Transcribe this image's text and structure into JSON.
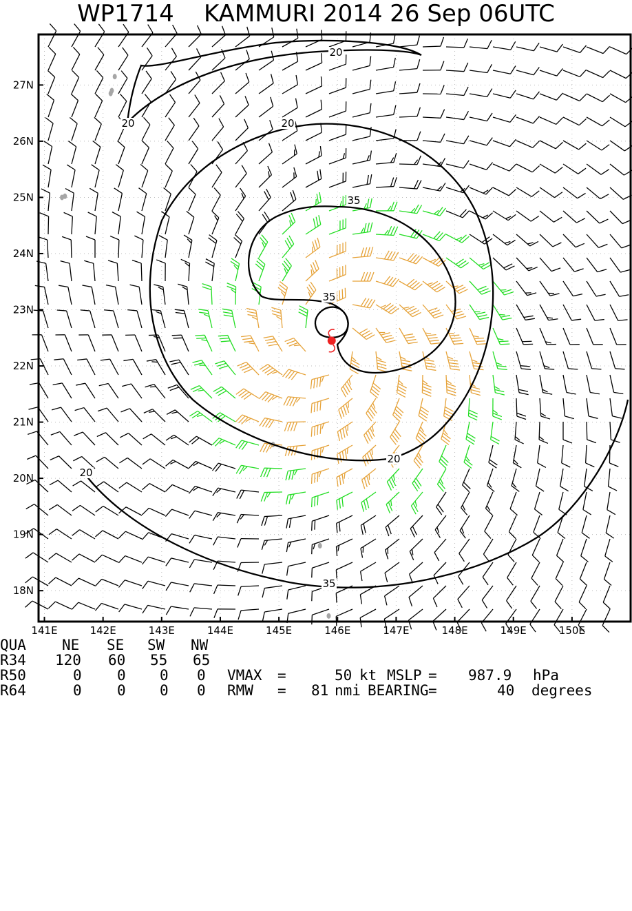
{
  "title": {
    "storm_id": "WP1714",
    "storm_name": "KAMMURI",
    "year": "2014",
    "date": "26 Sep",
    "time": "06UTC"
  },
  "map": {
    "lon_range": [
      140.9,
      151.0
    ],
    "lat_range": [
      17.45,
      27.9
    ],
    "lon_ticks": [
      "141E",
      "142E",
      "143E",
      "144E",
      "145E",
      "146E",
      "147E",
      "148E",
      "149E",
      "150E"
    ],
    "lat_ticks": [
      "18N",
      "19N",
      "20N",
      "21N",
      "22N",
      "23N",
      "24N",
      "25N",
      "26N",
      "27N"
    ],
    "storm_center": {
      "lon": 145.9,
      "lat": 22.45
    },
    "contour_labels": [
      "20",
      "20",
      "20",
      "20",
      "20",
      "35",
      "35",
      "35"
    ],
    "colors": {
      "weak_barb": "#000000",
      "gale_barb": "#22dd22",
      "storm_barb": "#e6a33a",
      "center": "#ee2222",
      "land": "#a6a6a6",
      "contour": "#000000"
    }
  },
  "stats": {
    "header": {
      "label": "QUA",
      "cols": [
        "NE",
        "SE",
        "SW",
        "NW"
      ]
    },
    "rows": [
      {
        "label": "R34",
        "values": [
          "120",
          "60",
          "55",
          "65"
        ]
      },
      {
        "label": "R50",
        "values": [
          "0",
          "0",
          "0",
          "0"
        ]
      },
      {
        "label": "R64",
        "values": [
          "0",
          "0",
          "0",
          "0"
        ]
      }
    ],
    "vmax": {
      "label": "VMAX",
      "eq": "=",
      "value": "50",
      "unit": "kt"
    },
    "mslp": {
      "label": "MSLP",
      "eq": "=",
      "value": "987.9",
      "unit": "hPa"
    },
    "rmw": {
      "label": "RMW",
      "eq": "=",
      "value": "81",
      "unit": "nmi"
    },
    "bearing": {
      "label": "BEARING",
      "eq": "=",
      "value": "40",
      "unit": "degrees"
    }
  }
}
